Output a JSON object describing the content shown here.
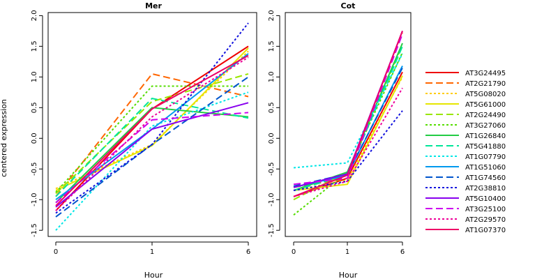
{
  "chart_data": {
    "type": "line",
    "ylabel": "centered expression",
    "xlabel": "Hour",
    "x": [
      "0",
      "1",
      "6"
    ],
    "ylim": [
      -1.6,
      2.05
    ],
    "yticks": [
      -1.5,
      -1.0,
      -0.5,
      0.0,
      0.5,
      1.0,
      1.5,
      2.0
    ],
    "ytick_labels": [
      "-1.5",
      "-1.0",
      "-0.5",
      "0.0",
      "0.5",
      "1.0",
      "1.5",
      "2.0"
    ],
    "grid": false,
    "legend_position": "right",
    "series": [
      {
        "name": "AT3G24495",
        "color": "#ee0000",
        "dash": "solid"
      },
      {
        "name": "AT2G21790",
        "color": "#ff6600",
        "dash": "longdash"
      },
      {
        "name": "AT5G08020",
        "color": "#ffcc00",
        "dash": "dotted"
      },
      {
        "name": "AT5G61000",
        "color": "#e6e600",
        "dash": "solid"
      },
      {
        "name": "AT2G24490",
        "color": "#99e600",
        "dash": "longdash"
      },
      {
        "name": "AT3G27060",
        "color": "#55dd00",
        "dash": "dotted"
      },
      {
        "name": "AT1G26840",
        "color": "#22cc44",
        "dash": "solid"
      },
      {
        "name": "AT5G41880",
        "color": "#00e699",
        "dash": "longdash"
      },
      {
        "name": "AT1G07790",
        "color": "#00e6e6",
        "dash": "dotted"
      },
      {
        "name": "AT1G51060",
        "color": "#0099ee",
        "dash": "solid"
      },
      {
        "name": "AT1G74560",
        "color": "#0055cc",
        "dash": "longdash"
      },
      {
        "name": "AT2G38810",
        "color": "#1111dd",
        "dash": "dotted"
      },
      {
        "name": "AT5G10400",
        "color": "#8800ee",
        "dash": "solid"
      },
      {
        "name": "AT3G25100",
        "color": "#cc00ee",
        "dash": "longdash"
      },
      {
        "name": "AT2G29570",
        "color": "#ee0099",
        "dash": "dotted"
      },
      {
        "name": "AT1G07370",
        "color": "#ee0066",
        "dash": "solid"
      }
    ],
    "panels": [
      {
        "title": "Mer",
        "values": [
          [
            -1.18,
            0.48,
            1.5
          ],
          [
            -0.95,
            1.05,
            0.68
          ],
          [
            -0.82,
            -0.1,
            1.42
          ],
          [
            -0.85,
            -0.12,
            1.47
          ],
          [
            -0.9,
            0.6,
            1.05
          ],
          [
            -0.88,
            0.85,
            0.85
          ],
          [
            -1.05,
            0.5,
            0.35
          ],
          [
            -0.95,
            0.65,
            0.33
          ],
          [
            -1.5,
            0.2,
            0.75
          ],
          [
            -1.0,
            0.15,
            1.38
          ],
          [
            -1.28,
            -0.1,
            1.0
          ],
          [
            -1.22,
            -0.1,
            1.88
          ],
          [
            -1.12,
            0.15,
            0.58
          ],
          [
            -1.05,
            0.3,
            0.42
          ],
          [
            -1.18,
            0.35,
            1.32
          ],
          [
            -1.1,
            0.48,
            1.35
          ]
        ]
      },
      {
        "title": "Cot",
        "values": [
          [
            -0.95,
            -0.65,
            1.08
          ],
          [
            -0.8,
            -0.65,
            1.72
          ],
          [
            -0.85,
            -0.68,
            1.0
          ],
          [
            -0.85,
            -0.75,
            1.02
          ],
          [
            -1.0,
            -0.55,
            1.52
          ],
          [
            -1.25,
            -0.55,
            1.4
          ],
          [
            -0.85,
            -0.55,
            1.55
          ],
          [
            -0.85,
            -0.6,
            1.5
          ],
          [
            -0.48,
            -0.4,
            1.38
          ],
          [
            -0.8,
            -0.6,
            1.18
          ],
          [
            -0.78,
            -0.58,
            1.15
          ],
          [
            -0.85,
            -0.7,
            0.45
          ],
          [
            -0.8,
            -0.58,
            1.75
          ],
          [
            -0.75,
            -0.65,
            1.7
          ],
          [
            -0.95,
            -0.7,
            0.82
          ],
          [
            -0.95,
            -0.6,
            1.75
          ]
        ]
      }
    ]
  }
}
